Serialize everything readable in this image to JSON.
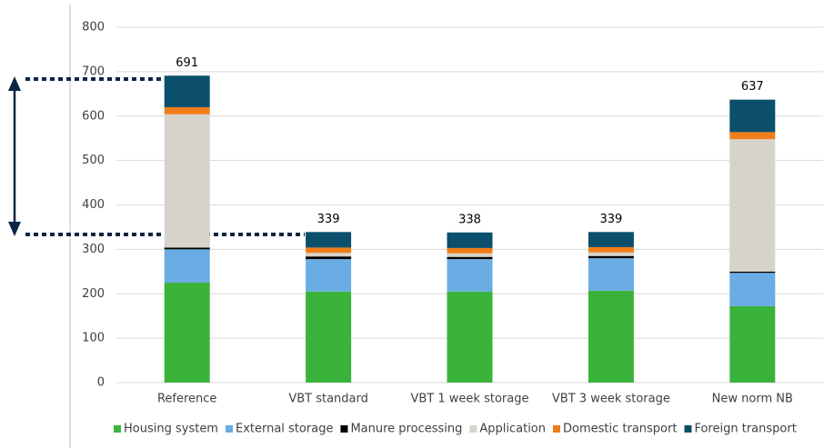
{
  "chart_data": {
    "type": "stacked_bar",
    "categories": [
      "Reference",
      "VBT standard",
      "VBT 1 week storage",
      "VBT 3 week storage",
      "New norm NB"
    ],
    "series": [
      {
        "name": "Housing system",
        "color": "#3bb33b",
        "values": [
          225,
          205,
          205,
          207,
          172
        ]
      },
      {
        "name": "External storage",
        "color": "#6aade4",
        "values": [
          75,
          73,
          73,
          73,
          75
        ]
      },
      {
        "name": "Manure processing",
        "color": "#000000",
        "values": [
          4,
          6,
          5,
          5,
          3
        ]
      },
      {
        "name": "Application",
        "color": "#d6d3cb",
        "values": [
          300,
          8,
          8,
          8,
          298
        ]
      },
      {
        "name": "Domestic transport",
        "color": "#f07d1a",
        "values": [
          16,
          12,
          12,
          12,
          16
        ]
      },
      {
        "name": "Foreign transport",
        "color": "#0b4f6c",
        "values": [
          71,
          35,
          35,
          34,
          73
        ]
      }
    ],
    "totals": [
      691,
      339,
      338,
      339,
      637
    ],
    "ylim": [
      0,
      800
    ],
    "yticks": [
      0,
      100,
      200,
      300,
      400,
      500,
      600,
      700,
      800
    ],
    "grid": true,
    "legend": "bottom"
  }
}
